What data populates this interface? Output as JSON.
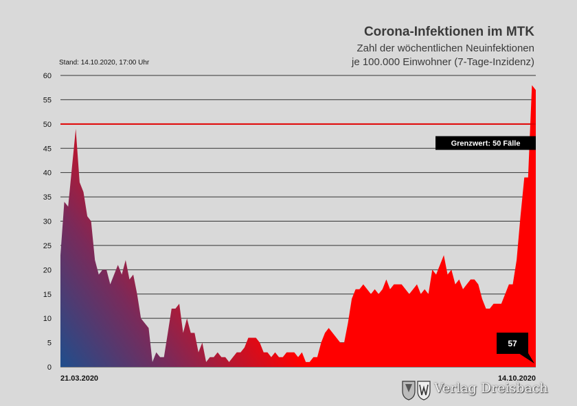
{
  "header": {
    "title": "Corona-Infektionen im MTK",
    "subtitle_line1": "Zahl der wöchentlichen  Neuinfektionen",
    "subtitle_line2": "je 100.000 Einwohner (7-Tage-Inzidenz)",
    "stand": "Stand: 14.10.2020, 17:00 Uhr"
  },
  "watermark": {
    "text": "Verlag Dreisbach"
  },
  "colors": {
    "background": "#d9d9d9",
    "area_red": "#ff0000",
    "area_blue": "#1f4e8c",
    "threshold": "#e00000",
    "grid": "#333333"
  },
  "chart_data": {
    "type": "area",
    "title": "Corona-Infektionen im MTK",
    "ylim": [
      0,
      60
    ],
    "y_ticks": [
      0,
      5,
      10,
      15,
      20,
      25,
      30,
      35,
      40,
      45,
      50,
      55,
      60
    ],
    "x_start_label": "21.03.2020",
    "x_end_label": "14.10.2020",
    "grid": true,
    "threshold": {
      "value": 50,
      "label": "Grenzwert: 50 Fälle"
    },
    "last_value_label": "57",
    "series": [
      {
        "values": [
          23,
          34,
          33,
          41,
          49,
          38,
          36,
          31,
          30,
          22,
          19,
          20,
          20,
          17,
          19,
          21,
          19,
          22,
          18,
          19,
          15,
          10,
          9,
          8,
          1,
          3,
          2,
          2,
          7,
          12,
          12,
          13,
          7,
          10,
          7,
          7,
          3,
          5,
          1,
          2,
          2,
          3,
          2,
          2,
          1,
          2,
          3,
          3,
          4,
          6,
          6,
          6,
          5,
          3,
          3,
          2,
          3,
          2,
          2,
          3,
          3,
          3,
          2,
          3,
          1,
          1,
          2,
          2,
          5,
          7,
          8,
          7,
          6,
          5,
          5,
          9,
          14,
          16,
          16,
          17,
          16,
          15,
          16,
          15,
          16,
          18,
          16,
          17,
          17,
          17,
          16,
          15,
          16,
          17,
          15,
          16,
          15,
          20,
          19,
          21,
          23,
          19,
          20,
          17,
          18,
          16,
          17,
          18,
          18,
          17,
          14,
          12,
          12,
          13,
          13,
          13,
          15,
          17,
          17,
          22,
          31,
          39,
          39,
          58,
          57
        ]
      }
    ]
  }
}
